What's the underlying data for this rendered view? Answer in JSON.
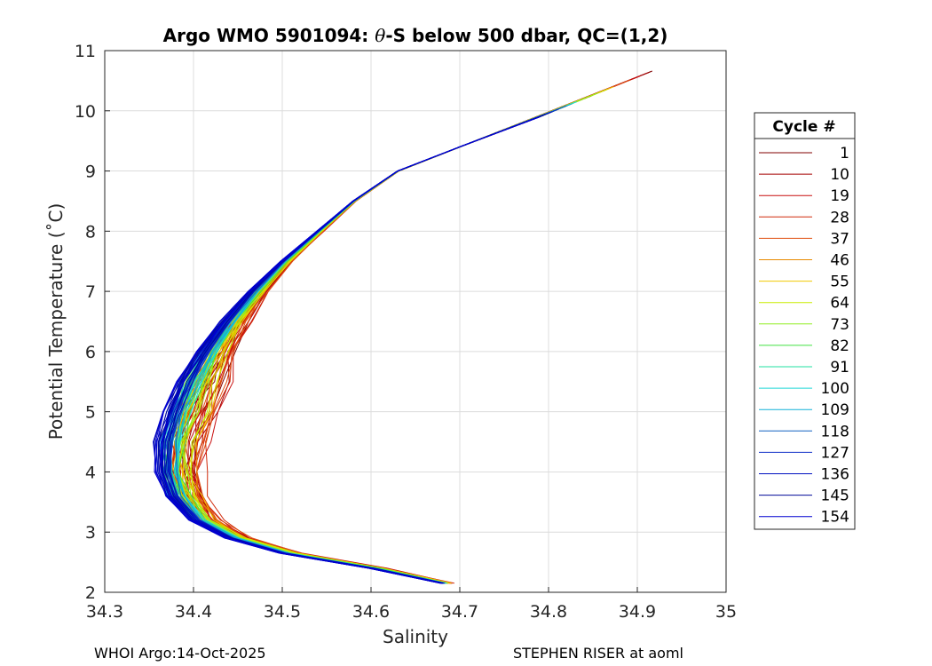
{
  "chart_data": {
    "type": "line",
    "title_prefix": "Argo WMO 5901094: ",
    "title_theta": "θ",
    "title_suffix": "-S below 500 dbar,  QC=(1,2)",
    "xlabel": "Salinity",
    "ylabel": "Potential Temperature (˚C)",
    "xlim": [
      34.3,
      35.0
    ],
    "ylim": [
      2,
      11
    ],
    "xticks": [
      "34.3",
      "34.4",
      "34.5",
      "34.6",
      "34.7",
      "34.8",
      "34.9",
      "35"
    ],
    "yticks": [
      "2",
      "3",
      "4",
      "5",
      "6",
      "7",
      "8",
      "9",
      "10",
      "11"
    ],
    "grid": true,
    "legend": {
      "title": "Cycle #",
      "placement": "right-outside",
      "entries": [
        {
          "label": "1",
          "color": "#800000"
        },
        {
          "label": "10",
          "color": "#a50000"
        },
        {
          "label": "19",
          "color": "#c80f0f"
        },
        {
          "label": "28",
          "color": "#d02a0a"
        },
        {
          "label": "37",
          "color": "#e05010"
        },
        {
          "label": "46",
          "color": "#e88a00"
        },
        {
          "label": "55",
          "color": "#f0c800"
        },
        {
          "label": "64",
          "color": "#c8ec00"
        },
        {
          "label": "73",
          "color": "#90ee20"
        },
        {
          "label": "82",
          "color": "#40e040"
        },
        {
          "label": "91",
          "color": "#20e0a0"
        },
        {
          "label": "100",
          "color": "#20d8d8"
        },
        {
          "label": "109",
          "color": "#10b0d8"
        },
        {
          "label": "118",
          "color": "#1060c0"
        },
        {
          "label": "127",
          "color": "#1030c8"
        },
        {
          "label": "136",
          "color": "#0010c0"
        },
        {
          "label": "145",
          "color": "#000898"
        },
        {
          "label": "154",
          "color": "#0000d0"
        }
      ]
    },
    "series_shape": {
      "description": "Each cycle profile follows an approximate theta-S curve",
      "points": [
        [
          34.68,
          2.15
        ],
        [
          34.6,
          2.4
        ],
        [
          34.5,
          2.65
        ],
        [
          34.44,
          2.9
        ],
        [
          34.4,
          3.2
        ],
        [
          34.375,
          3.6
        ],
        [
          34.365,
          4.0
        ],
        [
          34.365,
          4.5
        ],
        [
          34.375,
          5.0
        ],
        [
          34.39,
          5.5
        ],
        [
          34.41,
          6.0
        ],
        [
          34.435,
          6.5
        ],
        [
          34.465,
          7.0
        ],
        [
          34.5,
          7.5
        ],
        [
          34.54,
          8.0
        ],
        [
          34.58,
          8.5
        ],
        [
          34.63,
          9.0
        ],
        [
          34.7,
          9.4
        ],
        [
          34.79,
          9.9
        ]
      ],
      "cycles_early_offset": 0.05,
      "max_early_extent": [
        34.94,
        10.8
      ]
    }
  },
  "footer": {
    "left": "WHOI Argo:14-Oct-2025",
    "right": "STEPHEN RISER at aoml"
  }
}
